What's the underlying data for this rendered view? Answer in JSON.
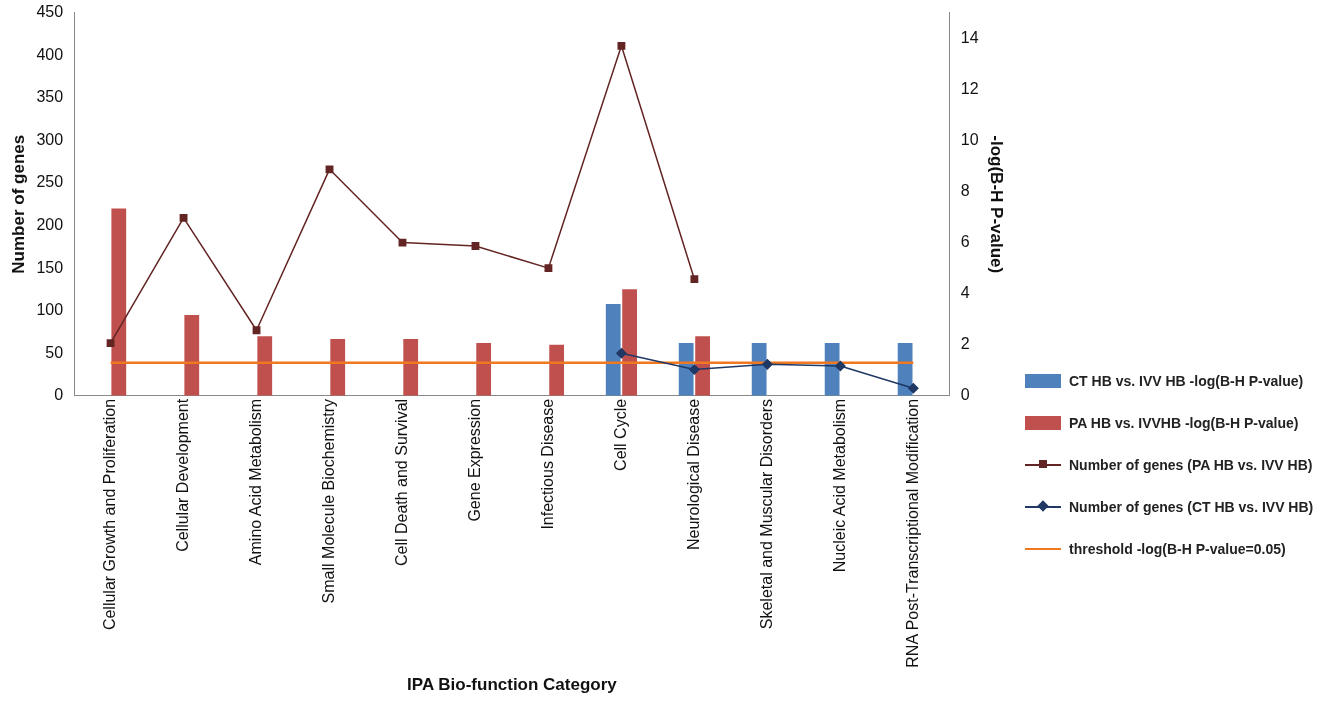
{
  "chart_data": {
    "type": "bar",
    "xlabel": "IPA Bio-function Category",
    "ylabel": "Number of genes",
    "y2label": "-log(B-H P-value)",
    "categories": [
      "Cellular Growth and Proliferation",
      "Cellular Development",
      "Amino Acid Metabolism",
      "Small Molecule Biochemistry",
      "Cell Death and Survival",
      "Gene Expression",
      "Infectious Disease",
      "Cell Cycle",
      "Neurological Disease",
      "Skeletal and Muscular Disorders",
      "Nucleic Acid Metabolism",
      "RNA Post-Transcriptional Modification"
    ],
    "series": [
      {
        "name": "CT HB vs. IVV HB -log(B-H P-value)",
        "axis": "y2",
        "color": "#4f81bd",
        "values": [
          null,
          null,
          null,
          null,
          null,
          null,
          null,
          3.6,
          2.07,
          2.07,
          2.07,
          2.07
        ]
      },
      {
        "name": "PA HB vs. IVVHB -log(B-H P-value)",
        "axis": "y2",
        "color": "#c0504d",
        "values": [
          7.33,
          3.17,
          2.33,
          2.23,
          2.23,
          2.07,
          2.0,
          4.17,
          2.33,
          null,
          null,
          null
        ]
      },
      {
        "name": "Number of genes (PA HB vs. IVV HB)",
        "type": "line",
        "axis": "y",
        "color": "#632523",
        "marker": "square",
        "values": [
          62,
          209,
          77,
          266,
          180,
          176,
          150,
          411,
          137,
          null,
          null,
          null
        ]
      },
      {
        "name": "Number of genes (CT HB vs. IVV HB)",
        "type": "line",
        "axis": "y",
        "color": "#1f3864",
        "marker": "diamond",
        "values": [
          null,
          null,
          null,
          null,
          null,
          null,
          null,
          50,
          31,
          37,
          35,
          9
        ]
      },
      {
        "name": "threshold -log(B-H P-value=0.05)",
        "type": "line",
        "axis": "y2",
        "color": "#f07820",
        "marker": "none",
        "values": [
          1.3,
          1.3,
          1.3,
          1.3,
          1.3,
          1.3,
          1.3,
          1.3,
          1.3,
          1.3,
          1.3,
          1.3
        ]
      }
    ],
    "ylim": [
      0,
      450
    ],
    "yticks": [
      0,
      50,
      100,
      150,
      200,
      250,
      300,
      350,
      400,
      450
    ],
    "y2lim": [
      0,
      15
    ],
    "y2ticks": [
      0,
      2,
      4,
      6,
      8,
      10,
      12,
      14
    ],
    "grid": false,
    "legend": "right"
  }
}
